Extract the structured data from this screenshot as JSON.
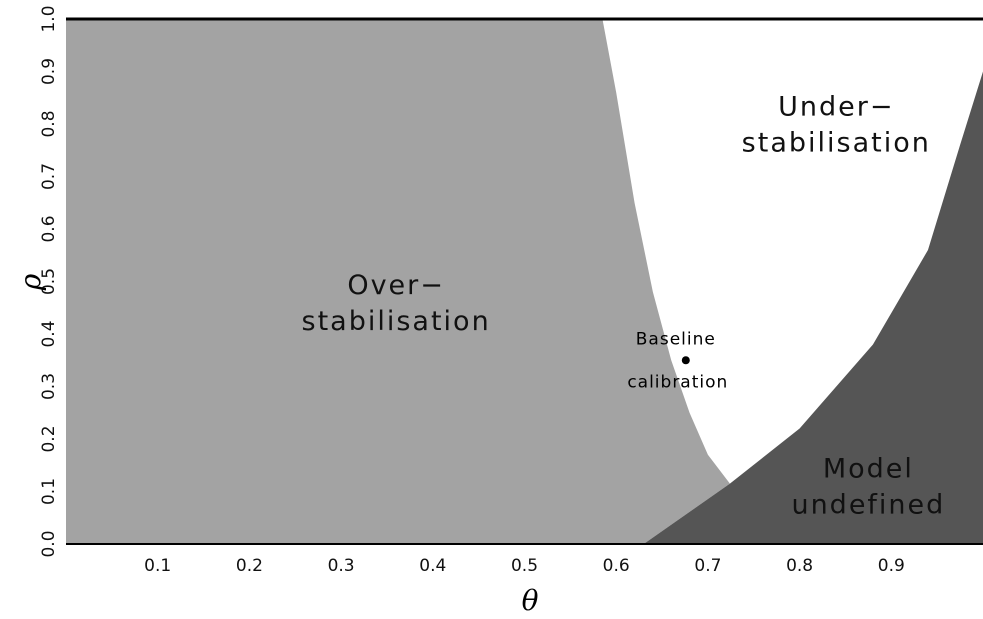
{
  "chart_data": {
    "type": "area",
    "xlabel": "θ",
    "ylabel": "ρ",
    "xlim": [
      0,
      1
    ],
    "ylim": [
      0,
      1
    ],
    "x_ticks": [
      "0.1",
      "0.2",
      "0.3",
      "0.4",
      "0.5",
      "0.6",
      "0.7",
      "0.8",
      "0.9"
    ],
    "y_ticks": [
      "0.0",
      "0.1",
      "0.2",
      "0.3",
      "0.4",
      "0.5",
      "0.6",
      "0.7",
      "0.8",
      "0.9",
      "1.0"
    ],
    "regions": [
      {
        "label_line1": "Over−",
        "label_line2": "stabilisation",
        "color": "#a3a3a3",
        "label_at": [
          0.36,
          0.45
        ],
        "boundary": [
          [
            0.585,
            1.0
          ],
          [
            0.6,
            0.86
          ],
          [
            0.62,
            0.65
          ],
          [
            0.64,
            0.48
          ],
          [
            0.66,
            0.35
          ],
          [
            0.68,
            0.25
          ],
          [
            0.7,
            0.17
          ],
          [
            0.724,
            0.115
          ]
        ]
      },
      {
        "label_line1": "Under−",
        "label_line2": "stabilisation",
        "color": "#ffffff",
        "label_at": [
          0.84,
          0.79
        ]
      },
      {
        "label_line1": "Model",
        "label_line2": "undefined",
        "color": "#555555",
        "label_at": [
          0.875,
          0.1
        ],
        "boundary": [
          [
            0.63,
            0.0
          ],
          [
            0.724,
            0.115
          ],
          [
            0.8,
            0.22
          ],
          [
            0.88,
            0.38
          ],
          [
            0.94,
            0.56
          ],
          [
            0.975,
            0.76
          ],
          [
            1.0,
            0.9
          ]
        ]
      }
    ],
    "points": [
      {
        "label_line1": "Baseline",
        "label_line2": "calibration",
        "x": 0.665,
        "y": 0.35
      }
    ]
  }
}
